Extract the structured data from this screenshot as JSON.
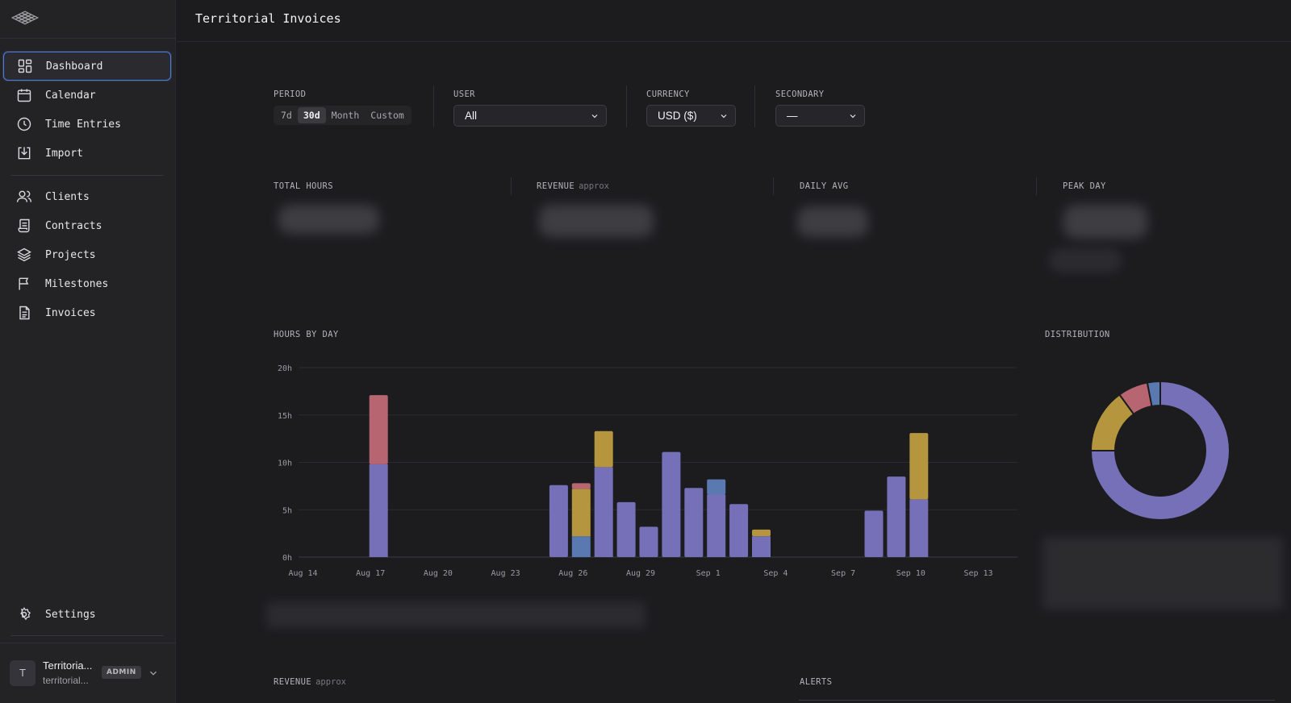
{
  "app": {
    "title": "Territorial Invoices"
  },
  "sidebar": {
    "items": [
      {
        "key": "dashboard",
        "label": "Dashboard",
        "icon": "dashboard-icon",
        "active": true
      },
      {
        "key": "calendar",
        "label": "Calendar",
        "icon": "calendar-icon"
      },
      {
        "key": "time-entries",
        "label": "Time Entries",
        "icon": "clock-icon"
      },
      {
        "key": "import",
        "label": "Import",
        "icon": "import-icon"
      },
      {
        "key": "clients",
        "label": "Clients",
        "icon": "users-icon"
      },
      {
        "key": "contracts",
        "label": "Contracts",
        "icon": "scroll-icon"
      },
      {
        "key": "projects",
        "label": "Projects",
        "icon": "layers-icon"
      },
      {
        "key": "milestones",
        "label": "Milestones",
        "icon": "flag-icon"
      },
      {
        "key": "invoices",
        "label": "Invoices",
        "icon": "file-text-icon"
      }
    ],
    "settings_label": "Settings",
    "user": {
      "initial": "T",
      "name": "Territoria...",
      "subtitle": "territorial...",
      "role": "ADMIN"
    }
  },
  "filters": {
    "period": {
      "label": "PERIOD",
      "options": [
        "7d",
        "30d",
        "Month",
        "Custom"
      ],
      "selected": "30d"
    },
    "user": {
      "label": "USER",
      "value": "All"
    },
    "currency": {
      "label": "CURRENCY",
      "value": "USD ($)"
    },
    "secondary": {
      "label": "SECONDARY",
      "value": "—"
    }
  },
  "kpis": {
    "total_hours": {
      "label": "TOTAL HOURS"
    },
    "revenue": {
      "label": "REVENUE",
      "note": "approx"
    },
    "daily_avg": {
      "label": "DAILY AVG"
    },
    "peak_day": {
      "label": "PEAK DAY"
    }
  },
  "sections": {
    "hours_by_day": "HOURS BY DAY",
    "distribution": "DISTRIBUTION",
    "revenue": "REVENUE",
    "revenue_note": "approx",
    "alerts": "ALERTS"
  },
  "colors": {
    "purple": "#7570b7",
    "gold": "#b5953e",
    "rose": "#b86572",
    "blue": "#5b79b1",
    "accent": "#4c7bd9"
  },
  "chart_data": [
    {
      "type": "bar",
      "stacked": true,
      "title": "HOURS BY DAY",
      "ylim": [
        0,
        20
      ],
      "yticks": [
        "0h",
        "5h",
        "10h",
        "15h",
        "20h"
      ],
      "xticks": [
        {
          "label": "Aug 14",
          "index": 0
        },
        {
          "label": "Aug 17",
          "index": 3
        },
        {
          "label": "Aug 20",
          "index": 6
        },
        {
          "label": "Aug 23",
          "index": 9
        },
        {
          "label": "Aug 26",
          "index": 12
        },
        {
          "label": "Aug 29",
          "index": 15
        },
        {
          "label": "Sep 1",
          "index": 18
        },
        {
          "label": "Sep 4",
          "index": 21
        },
        {
          "label": "Sep 7",
          "index": 24
        },
        {
          "label": "Sep 10",
          "index": 27
        },
        {
          "label": "Sep 13",
          "index": 30
        }
      ],
      "categories": [
        "Aug 14",
        "Aug 15",
        "Aug 16",
        "Aug 17",
        "Aug 18",
        "Aug 19",
        "Aug 20",
        "Aug 21",
        "Aug 22",
        "Aug 23",
        "Aug 24",
        "Aug 25",
        "Aug 26",
        "Aug 27",
        "Aug 28",
        "Aug 29",
        "Aug 30",
        "Aug 31",
        "Sep 1",
        "Sep 2",
        "Sep 3",
        "Sep 4",
        "Sep 5",
        "Sep 6",
        "Sep 7",
        "Sep 8",
        "Sep 9",
        "Sep 10",
        "Sep 11",
        "Sep 12",
        "Sep 13"
      ],
      "grid": true,
      "series": [
        {
          "color": "purple",
          "values": [
            0,
            0,
            0,
            9.8,
            0,
            0,
            0,
            0,
            0,
            0,
            0,
            7.6,
            0,
            9.5,
            5.8,
            3.2,
            11.1,
            7.3,
            6.6,
            5.6,
            2.2,
            0,
            0,
            0,
            0,
            4.9,
            8.5,
            6.1,
            0,
            0,
            0
          ]
        },
        {
          "color": "blue",
          "values": [
            0,
            0,
            0,
            0,
            0,
            0,
            0,
            0,
            0,
            0,
            0,
            0,
            2.2,
            0,
            0,
            0,
            0,
            0,
            1.6,
            0,
            0,
            0,
            0,
            0,
            0,
            0,
            0,
            0,
            0,
            0,
            0
          ]
        },
        {
          "color": "gold",
          "values": [
            0,
            0,
            0,
            0,
            0,
            0,
            0,
            0,
            0,
            0,
            0,
            0,
            5.0,
            3.8,
            0,
            0,
            0,
            0,
            0,
            0,
            0.7,
            0,
            0,
            0,
            0,
            0,
            0,
            7.0,
            0,
            0,
            0
          ]
        },
        {
          "color": "rose",
          "values": [
            0,
            0,
            0,
            7.3,
            0,
            0,
            0,
            0,
            0,
            0,
            0,
            0,
            0.6,
            0,
            0,
            0,
            0,
            0,
            0,
            0,
            0,
            0,
            0,
            0,
            0,
            0,
            0,
            0,
            0,
            0,
            0
          ]
        }
      ]
    },
    {
      "type": "pie",
      "donut": true,
      "title": "DISTRIBUTION",
      "slices": [
        {
          "color": "purple",
          "value": 75
        },
        {
          "color": "gold",
          "value": 15
        },
        {
          "color": "rose",
          "value": 7
        },
        {
          "color": "blue",
          "value": 3
        }
      ]
    }
  ]
}
